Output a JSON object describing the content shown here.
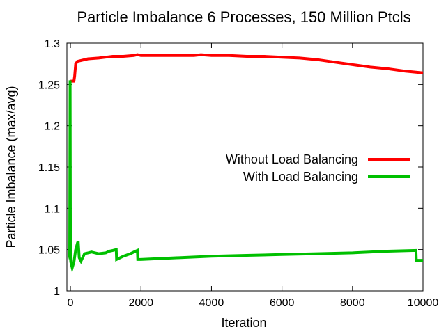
{
  "chart_data": {
    "type": "line",
    "title": "Particle Imbalance 6 Processes, 150 Million Ptcls",
    "xlabel": "Iteration",
    "ylabel": "Particle Imbalance (max/avg)",
    "xlim": [
      -100,
      10000
    ],
    "ylim": [
      1,
      1.3
    ],
    "xticks": [
      0,
      2000,
      4000,
      6000,
      8000,
      10000
    ],
    "yticks": [
      1,
      1.05,
      1.1,
      1.15,
      1.2,
      1.25,
      1.3
    ],
    "xtick_labels": [
      "0",
      "2000",
      "4000",
      "6000",
      "8000",
      "10000"
    ],
    "ytick_labels": [
      "1",
      "1.05",
      "1.1",
      "1.15",
      "1.2",
      "1.25",
      "1.3"
    ],
    "grid": false,
    "legend_position": "right-middle",
    "series": [
      {
        "name": "Without Load Balancing",
        "color": "#ff0000",
        "x": [
          0,
          30,
          60,
          100,
          120,
          150,
          200,
          300,
          500,
          800,
          1000,
          1200,
          1500,
          1800,
          1900,
          2000,
          2500,
          3000,
          3500,
          3700,
          4000,
          4500,
          5000,
          5500,
          6000,
          6500,
          7000,
          7500,
          8000,
          8500,
          9000,
          9500,
          10000
        ],
        "y": [
          1.254,
          1.254,
          1.254,
          1.254,
          1.26,
          1.275,
          1.278,
          1.279,
          1.281,
          1.282,
          1.283,
          1.284,
          1.284,
          1.285,
          1.286,
          1.285,
          1.285,
          1.285,
          1.285,
          1.286,
          1.285,
          1.285,
          1.284,
          1.284,
          1.283,
          1.282,
          1.28,
          1.277,
          1.274,
          1.271,
          1.269,
          1.266,
          1.264
        ]
      },
      {
        "name": "With Load Balancing",
        "color": "#00c000",
        "x": [
          -50,
          -20,
          -10,
          0,
          10,
          50,
          100,
          150,
          200,
          220,
          250,
          300,
          400,
          500,
          600,
          700,
          800,
          1000,
          1100,
          1200,
          1300,
          1310,
          1500,
          1700,
          1850,
          1900,
          1910,
          2000,
          3000,
          4000,
          5000,
          6000,
          7000,
          8000,
          9000,
          9800,
          9810,
          10000
        ],
        "y": [
          1.04,
          1.04,
          1.255,
          1.04,
          1.035,
          1.028,
          1.035,
          1.05,
          1.058,
          1.06,
          1.04,
          1.036,
          1.045,
          1.046,
          1.047,
          1.046,
          1.045,
          1.046,
          1.048,
          1.049,
          1.05,
          1.038,
          1.042,
          1.045,
          1.048,
          1.049,
          1.038,
          1.038,
          1.04,
          1.042,
          1.043,
          1.044,
          1.045,
          1.046,
          1.048,
          1.049,
          1.037,
          1.037
        ]
      }
    ]
  }
}
